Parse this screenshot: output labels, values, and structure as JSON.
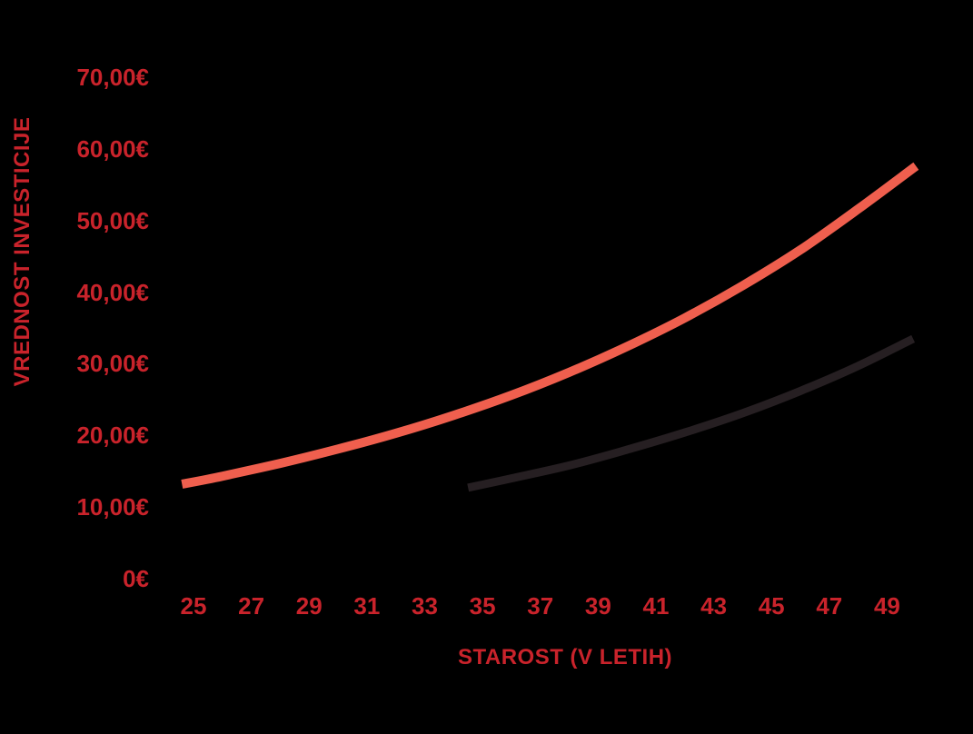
{
  "colors": {
    "background": "#000000",
    "label_red": "#c9232b",
    "curve_red": "#ef5f4e",
    "curve_black": "#261f22"
  },
  "chart_data": {
    "type": "line",
    "title": "",
    "xlabel": "STAROST (V LETIH)",
    "ylabel": "VREDNOST INVESTICIJE",
    "grid": false,
    "legend": null,
    "xlim": [
      24.4,
      51
    ],
    "ylim": [
      0,
      74
    ],
    "x_ticks": [
      25,
      27,
      29,
      31,
      33,
      35,
      37,
      39,
      41,
      43,
      45,
      47,
      49
    ],
    "x_tick_labels": [
      "25",
      "27",
      "29",
      "31",
      "33",
      "35",
      "37",
      "39",
      "41",
      "43",
      "45",
      "47",
      "49"
    ],
    "y_ticks": [
      0,
      10,
      20,
      30,
      40,
      50,
      60,
      70
    ],
    "y_tick_labels": [
      "0€",
      "10,00€",
      "20,00€",
      "30,00€",
      "40,00€",
      "50,00€",
      "60,00€",
      "70,00€"
    ],
    "series": [
      {
        "name": "red-curve",
        "color": "#ef5f4e",
        "x": [
          24.6,
          26,
          28,
          30,
          32,
          34,
          36,
          38,
          40,
          42,
          44,
          46,
          48,
          50
        ],
        "y": [
          13.2,
          14.3,
          16.1,
          18.1,
          20.3,
          22.8,
          25.6,
          28.8,
          32.4,
          36.4,
          40.9,
          45.9,
          51.6,
          57.6
        ]
      },
      {
        "name": "black-curve",
        "color": "#261f22",
        "x": [
          34.5,
          36,
          38,
          40,
          42,
          44,
          46,
          48,
          49.9
        ],
        "y": [
          12.7,
          14.0,
          15.8,
          18.0,
          20.4,
          23.1,
          26.2,
          29.7,
          33.5
        ]
      }
    ]
  }
}
